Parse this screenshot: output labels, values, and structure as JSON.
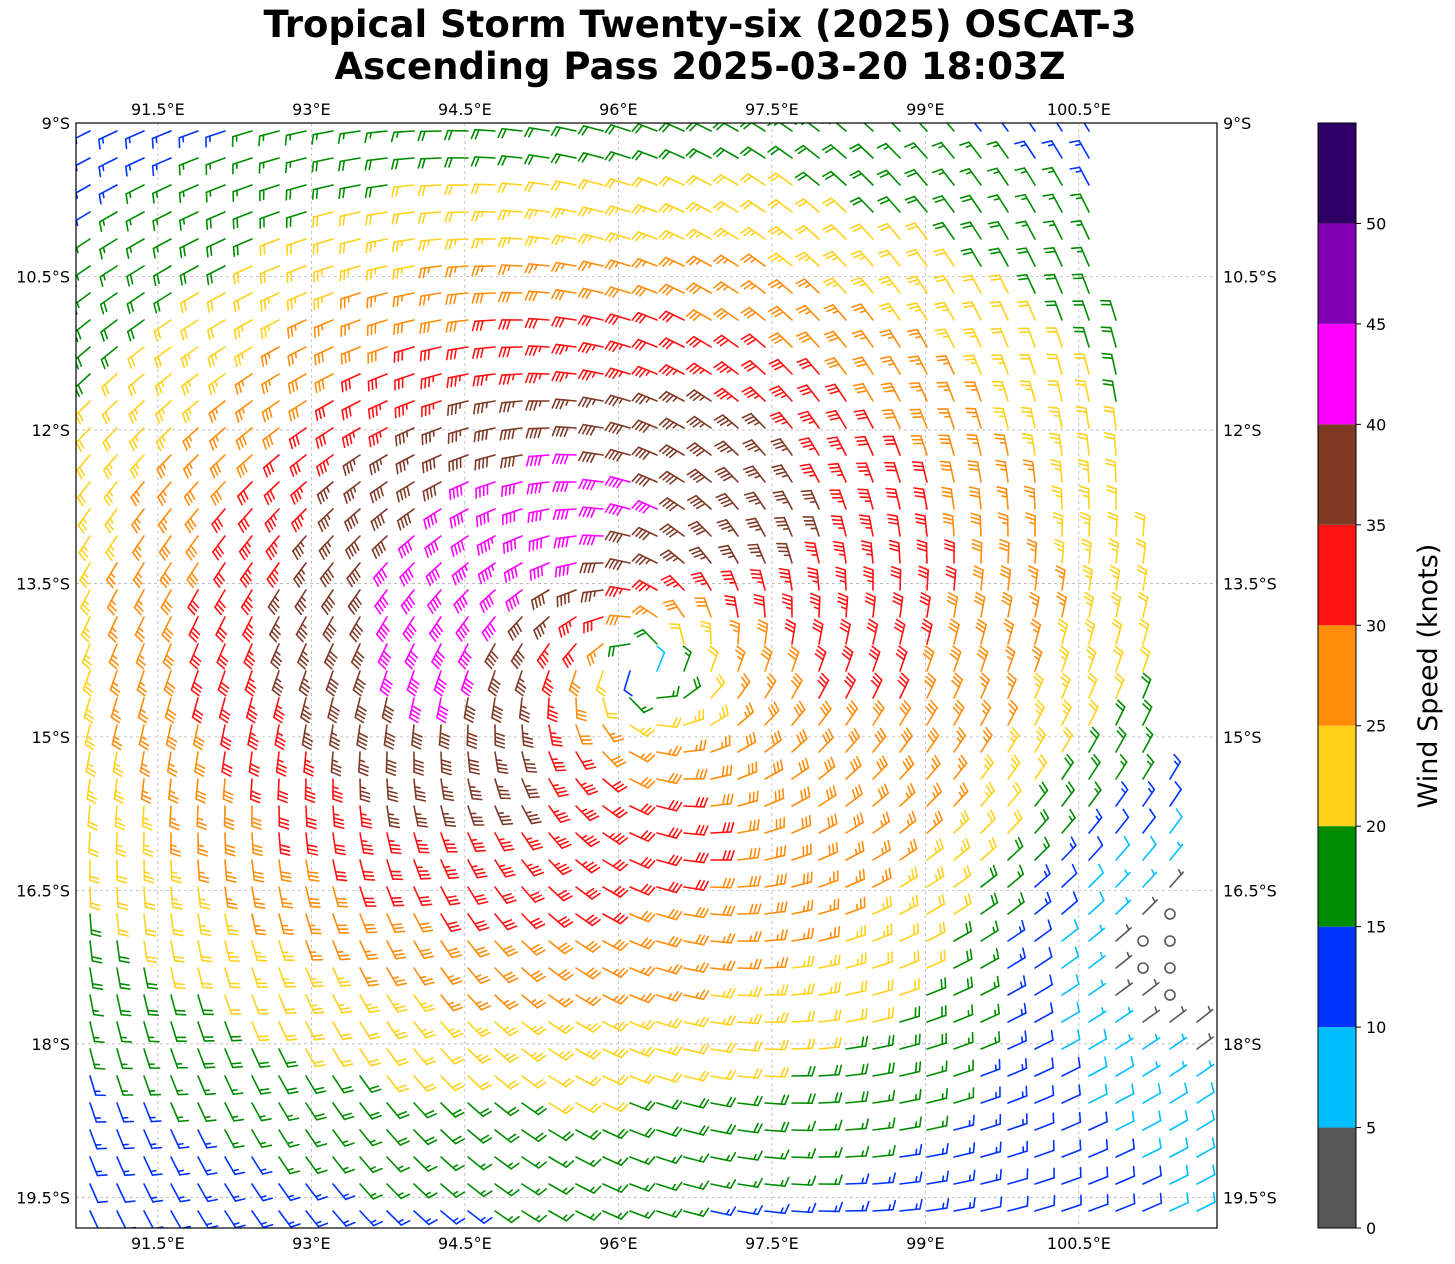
{
  "chart_data": {
    "type": "wind-barb-map",
    "title_line1": "Tropical Storm Twenty-six (2025) OSCAT-3",
    "title_line2": "Ascending Pass 2025-03-20 18:03Z",
    "lon_ticks": [
      "91.5°E",
      "93°E",
      "94.5°E",
      "96°E",
      "97.5°E",
      "99°E",
      "100.5°E"
    ],
    "lon_tick_values": [
      91.5,
      93,
      94.5,
      96,
      97.5,
      99,
      100.5
    ],
    "lat_ticks": [
      "9°S",
      "10.5°S",
      "12°S",
      "13.5°S",
      "15°S",
      "16.5°S",
      "18°S",
      "19.5°S"
    ],
    "lat_tick_values": [
      -9,
      -10.5,
      -12,
      -13.5,
      -15,
      -16.5,
      -18,
      -19.5
    ],
    "xlim": [
      90.7,
      101.85
    ],
    "ylim": [
      -19.8,
      -9.0
    ],
    "grid": true,
    "storm_center": {
      "lon": 96.25,
      "lat": -14.35
    },
    "colorbar": {
      "label": "Wind Speed (knots)",
      "tick_labels": [
        "0",
        "5",
        "10",
        "15",
        "20",
        "25",
        "30",
        "35",
        "40",
        "45",
        "50"
      ],
      "bounds": [
        0,
        5,
        10,
        15,
        20,
        25,
        30,
        35,
        40,
        45,
        50,
        55
      ],
      "colors": [
        "#575757",
        "#00bfff",
        "#0033ff",
        "#008c00",
        "#ffd11a",
        "#ff8c0a",
        "#ff1212",
        "#7f3a26",
        "#ff00ff",
        "#8200b4",
        "#2e0066"
      ]
    }
  }
}
